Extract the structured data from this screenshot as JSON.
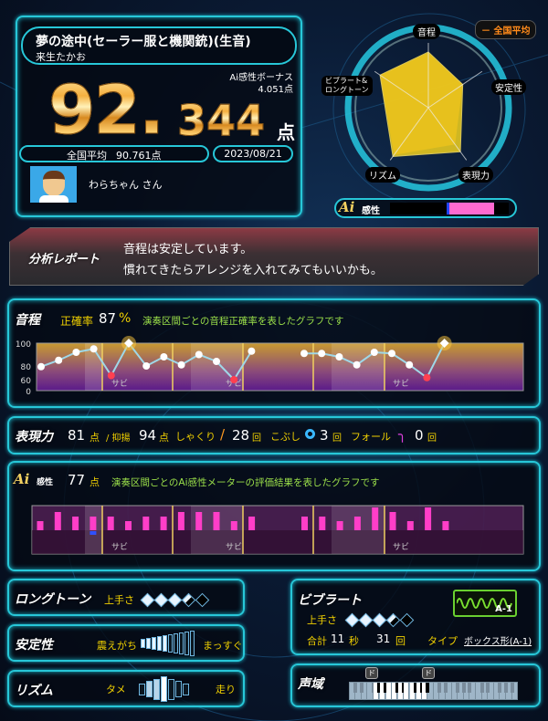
{
  "song": {
    "title": "夢の途中(セーラー服と機関銃)(生音)",
    "artist": "来生たかお"
  },
  "score": {
    "integer": "92.",
    "decimal": "344",
    "unit": "点",
    "ai_bonus_label": "Ai感性ボーナス",
    "ai_bonus_value": "4.051点"
  },
  "national_average": {
    "label": "全国平均",
    "value": "90.761点"
  },
  "date": "2023/08/21",
  "user": {
    "name": "わらちゃん さん"
  },
  "radar": {
    "legend": "－ 全国平均",
    "axes": [
      "音程",
      "安定性",
      "表現力",
      "リズム",
      "ビブラート&\nロングトーン"
    ],
    "axis_labels": {
      "pitch": "音程",
      "stability": "安定性",
      "expression": "表現力",
      "rhythm": "リズム",
      "vibrato1": "ビブラート&",
      "vibrato2": "ロングトーン"
    },
    "user_values": [
      86,
      64,
      84,
      93,
      90
    ],
    "average_values": [
      85,
      64,
      70,
      90,
      90
    ],
    "colors": {
      "user": "#f2d21e",
      "average": "#e07a10"
    }
  },
  "ai_meter": {
    "label": "感性",
    "logo": "Ai",
    "marker": 0.48,
    "fill_start": 0.49,
    "fill_end": 0.88,
    "fill_color": "#ff6ad0",
    "marker_color": "#2244ff"
  },
  "report": {
    "label": "分析レポート",
    "line1": "音程は安定しています。",
    "line2": "慣れてきたらアレンジを入れてみてもいいかも。"
  },
  "pitch": {
    "label": "音程",
    "accuracy_label": "正確率",
    "accuracy": "87",
    "accuracy_unit": "%",
    "description": "演奏区間ごとの音程正確率を表したグラフです",
    "y_ticks": [
      "100",
      "80",
      "60",
      "0"
    ],
    "sabi_label": "サビ",
    "values": [
      79,
      85,
      92,
      95,
      66,
      100,
      80,
      88,
      81,
      90,
      84,
      60,
      93,
      null,
      null,
      91,
      91,
      88,
      81,
      92,
      91,
      81,
      63,
      100
    ]
  },
  "expression": {
    "label": "表現力",
    "score": "81",
    "unit": "点",
    "yokuyo_label": "/ 抑揚",
    "yokuyo": "94",
    "shakuri_label": "しゃくり",
    "shakuri": "28",
    "kobushi_label": "こぶし",
    "kobushi": "3",
    "fall_label": "フォール",
    "fall": "0",
    "count_unit": "回"
  },
  "ai_sensitivity": {
    "logo": "Ai",
    "label": "感性",
    "score": "77",
    "unit": "点",
    "description": "演奏区間ごとのAi感性メーターの評価結果を表したグラフです",
    "sabi_label": "サビ",
    "values": [
      1,
      3,
      2,
      2,
      2,
      1,
      2,
      2,
      3,
      3,
      3,
      1,
      2,
      null,
      null,
      2,
      2,
      1,
      2,
      4,
      3,
      1,
      4,
      1
    ],
    "negative_index": 3
  },
  "longtone": {
    "label": "ロングトーン",
    "skill_label": "上手さ",
    "skill": 3.5,
    "max": 5
  },
  "stability": {
    "label": "安定性",
    "left": "震えがち",
    "right": "まっすぐ",
    "level": 5,
    "segments": 10
  },
  "rhythm": {
    "label": "リズム",
    "left": "タメ",
    "right": "走り",
    "position": 4,
    "segments": 7
  },
  "vibrato": {
    "label": "ビブラート",
    "skill_label": "上手さ",
    "skill": 3.5,
    "max": 5,
    "total_label": "合計",
    "seconds": "11",
    "sec_unit": "秒",
    "count": "31",
    "count_unit": "回",
    "type_label": "タイプ",
    "type_value": "ボックス形(A-1)",
    "badge": "A-1"
  },
  "range": {
    "label": "声域",
    "marker_low": "ド",
    "marker_high": "ド"
  }
}
